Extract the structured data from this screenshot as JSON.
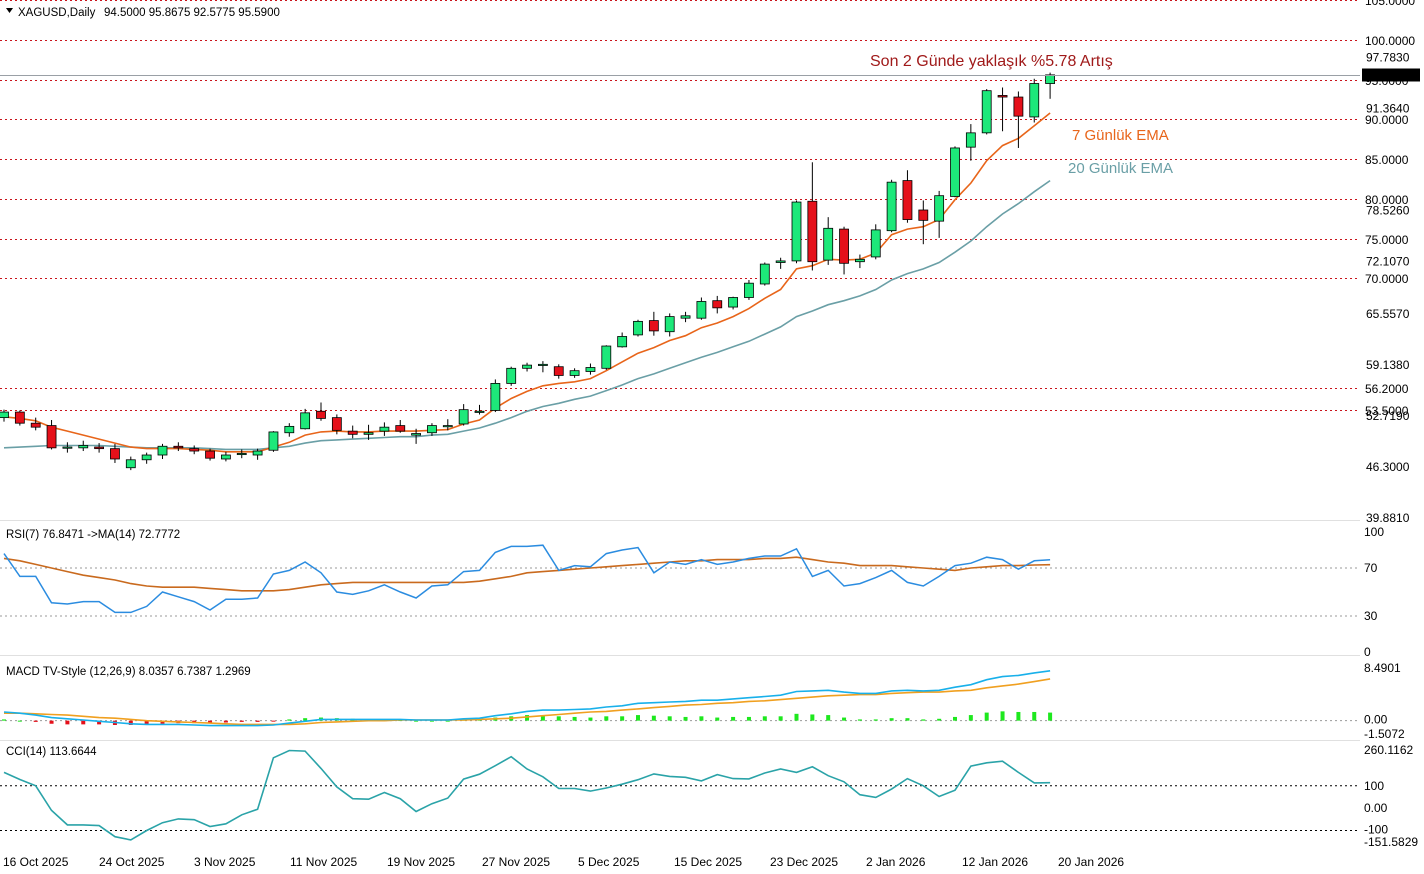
{
  "header": {
    "symbol": "XAGUSD,Daily",
    "ohlc": "94.5000 95.8675 92.5775 95.5900"
  },
  "annotations": {
    "gain": "Son 2 Günde yaklaşık %5.78 Artış",
    "ema7": "7 Günlük EMA",
    "ema20": "20 Günlük EMA"
  },
  "colors": {
    "bull": "#1de87a",
    "bear": "#e5101a",
    "ema7": "#e8651a",
    "ema20": "#6a9fa6",
    "level": "#c9141c",
    "rsi": "#2b8ce0",
    "rsi_ma": "#c96a1e",
    "macd": "#18b0ea",
    "signal": "#f0a020",
    "cci": "#2aa3a8"
  },
  "price_axis": {
    "ticks": [
      "97.7830",
      "91.3640",
      "78.5260",
      "72.1070",
      "65.5570",
      "59.1380",
      "52.7190",
      "46.3000",
      "39.8810"
    ],
    "current": "95.5900"
  },
  "levels": [
    "105.0000",
    "100.0000",
    "95.0000",
    "90.0000",
    "85.0000",
    "80.0000",
    "75.0000",
    "70.0000",
    "56.2000",
    "53.5000"
  ],
  "x_axis": [
    "16 Oct 2025",
    "24 Oct 2025",
    "3 Nov 2025",
    "11 Nov 2025",
    "19 Nov 2025",
    "27 Nov 2025",
    "5 Dec 2025",
    "15 Dec 2025",
    "23 Dec 2025",
    "2 Jan 2026",
    "12 Jan 2026",
    "20 Jan 2026"
  ],
  "rsi": {
    "label": "RSI(7) 76.8471 ->MA(14) 72.7772",
    "axis": [
      "100",
      "70",
      "30",
      "0"
    ]
  },
  "macd": {
    "label": "MACD TV-Style (12,26,9) 8.0357 6.7387 1.2969",
    "axis": [
      "8.4901",
      "0.00",
      "-1.5072"
    ]
  },
  "cci": {
    "label": "CCI(14) 113.6644",
    "axis": [
      "260.1162",
      "100",
      "0.00",
      "-100",
      "-151.5829"
    ]
  },
  "chart_data": [
    {
      "type": "candlestick",
      "symbol": "XAGUSD",
      "timeframe": "Daily",
      "yrange": [
        39.881,
        105
      ],
      "candles": [
        [
          52.5,
          53.5,
          52.0,
          53.2
        ],
        [
          53.2,
          53.4,
          51.5,
          51.8
        ],
        [
          51.8,
          52.5,
          50.9,
          51.3
        ],
        [
          51.5,
          52.2,
          48.5,
          48.7
        ],
        [
          48.7,
          49.4,
          48.1,
          48.8
        ],
        [
          48.7,
          49.6,
          48.3,
          49.0
        ],
        [
          48.8,
          49.3,
          48.1,
          48.6
        ],
        [
          48.6,
          49.2,
          46.8,
          47.3
        ],
        [
          46.2,
          47.6,
          45.9,
          47.2
        ],
        [
          47.2,
          48.1,
          46.7,
          47.8
        ],
        [
          47.8,
          49.2,
          47.3,
          48.9
        ],
        [
          48.9,
          49.4,
          48.3,
          48.7
        ],
        [
          48.6,
          49.0,
          47.9,
          48.3
        ],
        [
          48.3,
          48.6,
          47.1,
          47.4
        ],
        [
          47.3,
          48.2,
          47.0,
          47.8
        ],
        [
          47.9,
          48.5,
          47.4,
          48.0
        ],
        [
          47.8,
          48.6,
          47.2,
          48.3
        ],
        [
          48.4,
          50.8,
          48.2,
          50.7
        ],
        [
          50.6,
          51.8,
          50.1,
          51.4
        ],
        [
          51.1,
          53.6,
          51.0,
          53.1
        ],
        [
          53.3,
          54.4,
          52.1,
          52.4
        ],
        [
          52.5,
          52.9,
          50.4,
          50.9
        ],
        [
          50.8,
          51.5,
          49.9,
          50.4
        ],
        [
          50.4,
          51.6,
          49.7,
          50.6
        ],
        [
          50.8,
          51.9,
          50.2,
          51.3
        ],
        [
          51.5,
          52.2,
          50.6,
          50.8
        ],
        [
          50.3,
          51.1,
          49.2,
          50.5
        ],
        [
          50.6,
          51.8,
          50.2,
          51.5
        ],
        [
          51.4,
          52.3,
          50.9,
          51.5
        ],
        [
          51.7,
          54.2,
          51.5,
          53.5
        ],
        [
          53.3,
          54.1,
          52.9,
          53.3
        ],
        [
          53.4,
          57.3,
          53.2,
          56.8
        ],
        [
          56.8,
          58.9,
          56.5,
          58.7
        ],
        [
          58.7,
          59.4,
          58.3,
          59.1
        ],
        [
          59.2,
          59.6,
          58.2,
          59.2
        ],
        [
          58.9,
          59.2,
          57.4,
          57.8
        ],
        [
          57.8,
          58.7,
          57.5,
          58.4
        ],
        [
          58.3,
          59.3,
          57.9,
          58.8
        ],
        [
          58.7,
          61.6,
          58.5,
          61.5
        ],
        [
          61.4,
          63.2,
          61.3,
          62.7
        ],
        [
          62.9,
          64.8,
          62.7,
          64.6
        ],
        [
          64.7,
          65.8,
          62.8,
          63.4
        ],
        [
          63.3,
          65.6,
          62.7,
          65.2
        ],
        [
          65.0,
          65.8,
          64.5,
          65.3
        ],
        [
          65.0,
          67.6,
          64.8,
          67.1
        ],
        [
          67.2,
          67.8,
          65.6,
          66.3
        ],
        [
          66.4,
          67.7,
          66.1,
          67.6
        ],
        [
          67.6,
          69.8,
          67.3,
          69.4
        ],
        [
          69.3,
          72.0,
          69.1,
          71.8
        ],
        [
          72.0,
          72.6,
          71.2,
          72.2
        ],
        [
          72.2,
          79.8,
          71.9,
          79.6
        ],
        [
          79.7,
          84.6,
          71.0,
          72.1
        ],
        [
          72.3,
          77.7,
          71.7,
          76.3
        ],
        [
          76.2,
          76.5,
          70.5,
          71.9
        ],
        [
          72.1,
          73.0,
          71.3,
          72.4
        ],
        [
          72.7,
          76.8,
          72.4,
          76.1
        ],
        [
          76.0,
          82.4,
          75.8,
          82.1
        ],
        [
          82.3,
          83.6,
          77.0,
          77.4
        ],
        [
          78.6,
          79.8,
          74.3,
          77.3
        ],
        [
          77.2,
          81.0,
          75.1,
          80.4
        ],
        [
          80.3,
          86.6,
          80.2,
          86.4
        ],
        [
          86.5,
          89.4,
          84.8,
          88.3
        ],
        [
          88.3,
          93.8,
          88.1,
          93.6
        ],
        [
          93.0,
          94.0,
          88.5,
          92.8
        ],
        [
          92.8,
          93.5,
          86.4,
          90.4
        ],
        [
          90.3,
          95.1,
          89.6,
          94.5
        ],
        [
          94.5,
          95.87,
          92.58,
          95.59
        ]
      ],
      "ema7": [
        52.6,
        52.4,
        52.1,
        51.3,
        50.8,
        50.3,
        49.8,
        49.3,
        48.8,
        48.6,
        48.6,
        48.6,
        48.5,
        48.4,
        48.2,
        48.2,
        48.2,
        48.8,
        49.4,
        50.3,
        50.7,
        50.8,
        50.7,
        50.7,
        50.8,
        50.8,
        50.8,
        50.9,
        51.0,
        51.7,
        52.2,
        53.7,
        54.9,
        55.8,
        56.5,
        56.8,
        57.0,
        57.4,
        58.4,
        59.5,
        60.6,
        61.3,
        62.2,
        62.8,
        63.8,
        64.4,
        65.2,
        66.2,
        67.5,
        68.6,
        71.2,
        71.6,
        72.4,
        72.3,
        72.4,
        73.2,
        75.5,
        76.2,
        76.5,
        77.4,
        79.9,
        82.0,
        84.8,
        86.7,
        87.6,
        89.2,
        90.8
      ],
      "ema20": [
        48.7,
        48.8,
        48.9,
        49.0,
        49.0,
        49.0,
        49.0,
        48.9,
        48.8,
        48.7,
        48.7,
        48.7,
        48.7,
        48.6,
        48.5,
        48.5,
        48.5,
        48.7,
        48.9,
        49.3,
        49.6,
        49.7,
        49.8,
        49.9,
        50.0,
        50.1,
        50.1,
        50.3,
        50.4,
        50.8,
        51.2,
        51.8,
        52.5,
        53.3,
        53.9,
        54.3,
        54.8,
        55.2,
        55.9,
        56.6,
        57.4,
        58.0,
        58.7,
        59.4,
        60.1,
        60.7,
        61.4,
        62.1,
        63.0,
        63.9,
        65.2,
        65.9,
        66.7,
        67.2,
        67.8,
        68.6,
        69.8,
        70.6,
        71.2,
        72.0,
        73.3,
        74.7,
        76.5,
        78.1,
        79.4,
        80.9,
        82.3
      ]
    },
    {
      "type": "line",
      "name": "RSI(7)",
      "ylim": [
        0,
        100
      ],
      "rsi7": [
        82,
        63,
        63,
        41,
        40,
        42,
        42,
        33,
        33,
        38,
        50,
        46,
        42,
        35,
        44,
        44,
        45,
        65,
        68,
        75,
        66,
        50,
        48,
        51,
        56,
        50,
        45,
        55,
        56,
        67,
        68,
        83,
        88,
        88,
        89,
        68,
        72,
        71,
        82,
        85,
        87,
        66,
        75,
        73,
        77,
        73,
        75,
        78,
        80,
        80,
        86,
        63,
        68,
        55,
        57,
        62,
        68,
        58,
        55,
        63,
        72,
        74,
        79,
        77,
        69,
        76,
        76.85
      ],
      "ma14": [
        78,
        76,
        73,
        70,
        67,
        64,
        62,
        60,
        57,
        55,
        54,
        54,
        54,
        53,
        52,
        51,
        51,
        51,
        52,
        54,
        56,
        57,
        58,
        58,
        58,
        58,
        58,
        58,
        58,
        58,
        59,
        61,
        63,
        66,
        67,
        68,
        69,
        70,
        71,
        72,
        73,
        74,
        75,
        76,
        76,
        77,
        77,
        77,
        78,
        78,
        79,
        77,
        75,
        74,
        72,
        72,
        72,
        71,
        70,
        69,
        68,
        70,
        71,
        72,
        72,
        72.5,
        72.78
      ]
    },
    {
      "type": "line",
      "name": "MACD (12,26,9)",
      "ylim": [
        -1.5072,
        8.4901
      ],
      "macd": [
        1.4,
        1.2,
        0.9,
        0.5,
        0.3,
        0.1,
        -0.1,
        -0.3,
        -0.5,
        -0.6,
        -0.6,
        -0.6,
        -0.7,
        -0.8,
        -0.8,
        -0.8,
        -0.8,
        -0.7,
        -0.4,
        -0.1,
        0.2,
        0.2,
        0.2,
        0.2,
        0.2,
        0.2,
        0.1,
        0.1,
        0.1,
        0.3,
        0.4,
        0.8,
        1.1,
        1.5,
        1.7,
        1.7,
        1.8,
        1.9,
        2.2,
        2.4,
        2.8,
        2.9,
        3.0,
        3.1,
        3.3,
        3.3,
        3.5,
        3.7,
        3.9,
        4.1,
        4.7,
        4.8,
        4.9,
        4.6,
        4.4,
        4.4,
        4.8,
        4.9,
        4.8,
        4.9,
        5.4,
        5.8,
        6.6,
        7.1,
        7.3,
        7.7,
        8.04
      ],
      "signal": [
        1.2,
        1.2,
        1.1,
        1.0,
        0.9,
        0.7,
        0.5,
        0.4,
        0.2,
        0.0,
        -0.1,
        -0.2,
        -0.3,
        -0.4,
        -0.5,
        -0.6,
        -0.6,
        -0.6,
        -0.6,
        -0.5,
        -0.3,
        -0.2,
        -0.1,
        0.0,
        0.0,
        0.1,
        0.1,
        0.1,
        0.1,
        0.1,
        0.2,
        0.3,
        0.4,
        0.6,
        0.8,
        1.0,
        1.2,
        1.4,
        1.5,
        1.7,
        1.9,
        2.1,
        2.3,
        2.5,
        2.6,
        2.8,
        2.9,
        3.1,
        3.2,
        3.4,
        3.6,
        3.8,
        4.0,
        4.1,
        4.2,
        4.2,
        4.4,
        4.5,
        4.6,
        4.6,
        4.8,
        4.9,
        5.3,
        5.6,
        5.9,
        6.3,
        6.74
      ],
      "histogram": [
        0.2,
        0.0,
        -0.2,
        -0.5,
        -0.6,
        -0.6,
        -0.6,
        -0.7,
        -0.7,
        -0.6,
        -0.5,
        -0.4,
        -0.4,
        -0.4,
        -0.3,
        -0.2,
        -0.2,
        -0.1,
        0.2,
        0.4,
        0.5,
        0.4,
        0.3,
        0.2,
        0.2,
        0.1,
        0.0,
        0.0,
        0.0,
        0.2,
        0.2,
        0.5,
        0.7,
        0.9,
        0.9,
        0.7,
        0.6,
        0.5,
        0.7,
        0.7,
        0.9,
        0.8,
        0.7,
        0.6,
        0.7,
        0.5,
        0.6,
        0.6,
        0.7,
        0.7,
        1.1,
        1.0,
        0.9,
        0.5,
        0.2,
        0.2,
        0.4,
        0.4,
        0.2,
        0.3,
        0.6,
        0.9,
        1.3,
        1.5,
        1.4,
        1.4,
        1.3
      ]
    },
    {
      "type": "line",
      "name": "CCI(14)",
      "ylim": [
        -151.5829,
        260.1162
      ],
      "cci": [
        160,
        128,
        100,
        -10,
        -75,
        -75,
        -78,
        -128,
        -142,
        -100,
        -65,
        -48,
        -52,
        -82,
        -70,
        -30,
        -5,
        225,
        258,
        255,
        178,
        95,
        42,
        40,
        70,
        42,
        -15,
        20,
        45,
        130,
        152,
        190,
        230,
        175,
        140,
        88,
        88,
        76,
        90,
        107,
        127,
        153,
        142,
        138,
        122,
        150,
        132,
        131,
        157,
        175,
        160,
        185,
        145,
        118,
        60,
        48,
        85,
        132,
        100,
        52,
        80,
        188,
        203,
        210,
        160,
        113,
        113.66
      ]
    }
  ]
}
